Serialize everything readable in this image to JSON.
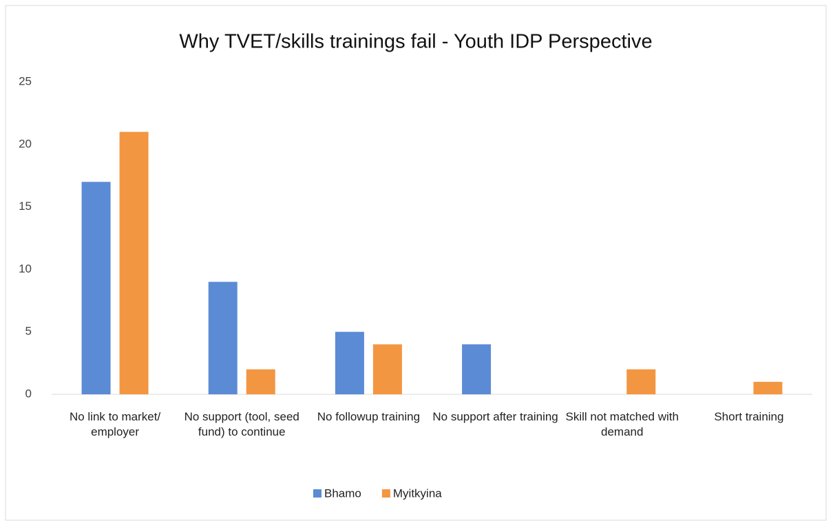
{
  "chart_data": {
    "type": "bar",
    "title": "Why TVET/skills trainings fail - Youth IDP Perspective",
    "categories": [
      "No link to market/ employer",
      "No support (tool, seed fund) to continue",
      "No followup training",
      "No support after training",
      "Skill not matched with demand",
      "Short training"
    ],
    "series": [
      {
        "name": "Bhamo",
        "color": "#5b8bd5",
        "values": [
          17,
          9,
          5,
          4,
          0,
          0
        ]
      },
      {
        "name": "Myitkyina",
        "color": "#f39642",
        "values": [
          21,
          2,
          4,
          0,
          2,
          1
        ]
      }
    ],
    "ylim": [
      0,
      25
    ],
    "yticks": [
      0,
      5,
      10,
      15,
      20,
      25
    ],
    "grid": false,
    "legend": "bottom"
  }
}
